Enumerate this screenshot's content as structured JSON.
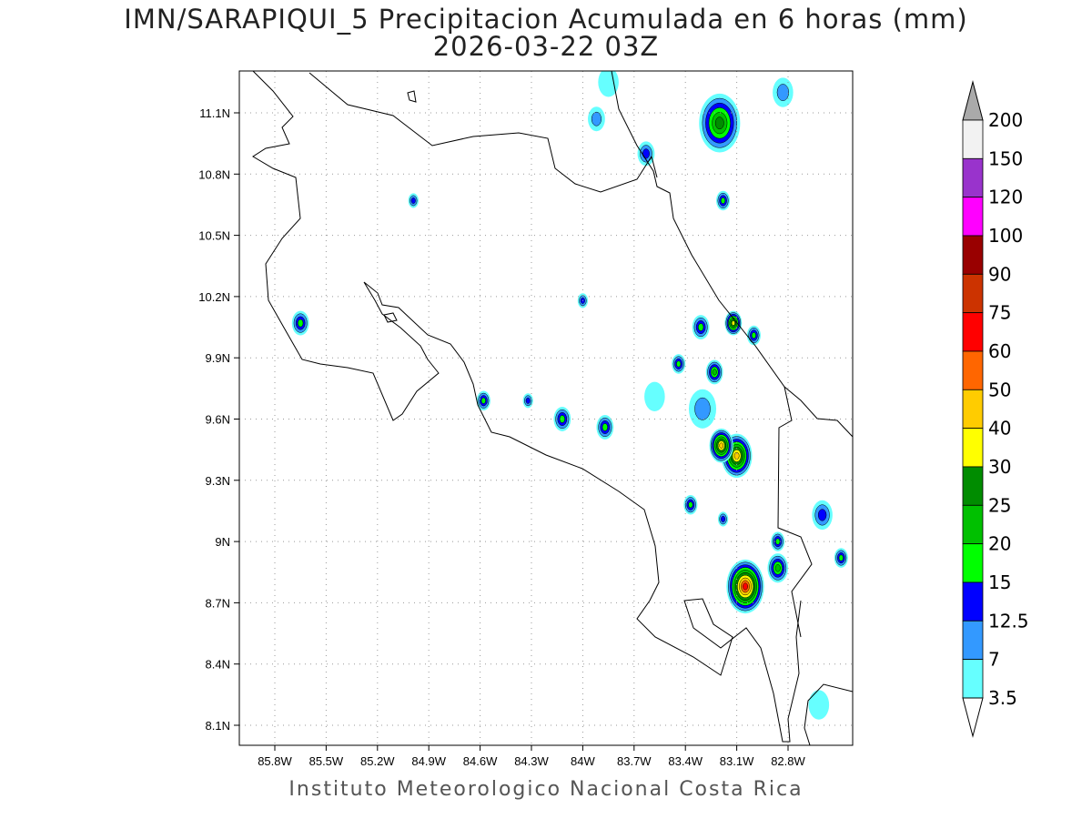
{
  "title": "IMN/SARAPIQUI_5 Precipitacion Acumulada en 6 horas (mm)",
  "subtitle": "2026-03-22 03Z",
  "footer": "Instituto Meteorologico Nacional Costa Rica",
  "lon_ticks": [
    "85.8W",
    "85.5W",
    "85.2W",
    "84.9W",
    "84.6W",
    "84.3W",
    "84W",
    "83.7W",
    "83.4W",
    "83.1W",
    "82.8W"
  ],
  "lon_values": [
    85.8,
    85.5,
    85.2,
    84.9,
    84.6,
    84.3,
    84.0,
    83.7,
    83.4,
    83.1,
    82.8
  ],
  "lat_ticks": [
    "11.1N",
    "10.8N",
    "10.5N",
    "10.2N",
    "9.9N",
    "9.6N",
    "9.3N",
    "9N",
    "8.7N",
    "8.4N",
    "8.1N"
  ],
  "lat_values": [
    11.1,
    10.8,
    10.5,
    10.2,
    9.9,
    9.6,
    9.3,
    9.0,
    8.7,
    8.4,
    8.1
  ],
  "colorbar": {
    "labels": [
      "200",
      "150",
      "120",
      "100",
      "90",
      "75",
      "60",
      "50",
      "40",
      "30",
      "25",
      "20",
      "15",
      "12.5",
      "7",
      "3.5"
    ],
    "colors": [
      "#f2f2f2",
      "#9933cc",
      "#ff00ff",
      "#990000",
      "#cc3300",
      "#ff0000",
      "#ff6600",
      "#ffcc00",
      "#ffff00",
      "#008c00",
      "#00c000",
      "#00ff00",
      "#0000ff",
      "#3399ff",
      "#66ffff"
    ],
    "over_color": "#aaaaaa",
    "under_color": "#ffffff"
  },
  "precip_cells": [
    {
      "lon": 83.2,
      "lat": 11.05,
      "peak": 25,
      "r": 0.12
    },
    {
      "lon": 83.1,
      "lat": 9.42,
      "peak": 40,
      "r": 0.09
    },
    {
      "lon": 83.19,
      "lat": 9.47,
      "peak": 40,
      "r": 0.07
    },
    {
      "lon": 83.05,
      "lat": 8.78,
      "peak": 60,
      "r": 0.11
    },
    {
      "lon": 83.12,
      "lat": 10.07,
      "peak": 30,
      "r": 0.05
    },
    {
      "lon": 85.65,
      "lat": 10.07,
      "peak": 15,
      "r": 0.05
    },
    {
      "lon": 84.58,
      "lat": 9.69,
      "peak": 15,
      "r": 0.04
    },
    {
      "lon": 84.12,
      "lat": 9.6,
      "peak": 15,
      "r": 0.05
    },
    {
      "lon": 83.87,
      "lat": 9.56,
      "peak": 15,
      "r": 0.05
    },
    {
      "lon": 83.23,
      "lat": 9.83,
      "peak": 20,
      "r": 0.05
    },
    {
      "lon": 83.37,
      "lat": 9.18,
      "peak": 15,
      "r": 0.04
    },
    {
      "lon": 82.86,
      "lat": 8.87,
      "peak": 20,
      "r": 0.06
    },
    {
      "lon": 82.49,
      "lat": 8.92,
      "peak": 15,
      "r": 0.04
    },
    {
      "lon": 83.0,
      "lat": 10.01,
      "peak": 15,
      "r": 0.04
    },
    {
      "lon": 83.31,
      "lat": 10.05,
      "peak": 15,
      "r": 0.05
    },
    {
      "lon": 82.6,
      "lat": 9.13,
      "peak": 12.5,
      "r": 0.06
    },
    {
      "lon": 83.18,
      "lat": 10.67,
      "peak": 15,
      "r": 0.04
    },
    {
      "lon": 83.63,
      "lat": 10.9,
      "peak": 12.5,
      "r": 0.05
    },
    {
      "lon": 83.92,
      "lat": 11.07,
      "peak": 7,
      "r": 0.05
    },
    {
      "lon": 82.83,
      "lat": 11.2,
      "peak": 7,
      "r": 0.06
    },
    {
      "lon": 84.99,
      "lat": 10.67,
      "peak": 12.5,
      "r": 0.03
    },
    {
      "lon": 84.0,
      "lat": 10.18,
      "peak": 12.5,
      "r": 0.03
    },
    {
      "lon": 83.44,
      "lat": 9.87,
      "peak": 15,
      "r": 0.04
    },
    {
      "lon": 82.62,
      "lat": 8.2,
      "peak": 3.5,
      "r": 0.06
    },
    {
      "lon": 83.58,
      "lat": 9.71,
      "peak": 3.5,
      "r": 0.06
    },
    {
      "lon": 84.32,
      "lat": 9.69,
      "peak": 12.5,
      "r": 0.03
    },
    {
      "lon": 83.18,
      "lat": 9.11,
      "peak": 12.5,
      "r": 0.03
    },
    {
      "lon": 82.86,
      "lat": 9.0,
      "peak": 15,
      "r": 0.04
    },
    {
      "lon": 83.85,
      "lat": 11.25,
      "peak": 3.5,
      "r": 0.06
    },
    {
      "lon": 83.3,
      "lat": 9.65,
      "peak": 7,
      "r": 0.08
    }
  ]
}
